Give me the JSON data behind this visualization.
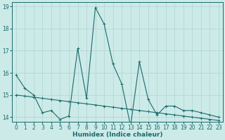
{
  "title": "",
  "xlabel": "Humidex (Indice chaleur)",
  "ylabel": "",
  "background_color": "#cceae8",
  "grid_color": "#aed4d2",
  "line_color": "#1a6b6b",
  "xlim": [
    -0.5,
    23.5
  ],
  "ylim": [
    13.8,
    19.2
  ],
  "yticks": [
    14,
    15,
    16,
    17,
    18,
    19
  ],
  "xticks": [
    0,
    1,
    2,
    3,
    4,
    5,
    6,
    7,
    8,
    9,
    10,
    11,
    12,
    13,
    14,
    15,
    16,
    17,
    18,
    19,
    20,
    21,
    22,
    23
  ],
  "series1_x": [
    0,
    1,
    2,
    3,
    4,
    5,
    6,
    7,
    8,
    9,
    10,
    11,
    12,
    13,
    14,
    15,
    16,
    17,
    18,
    19,
    20,
    21,
    22,
    23
  ],
  "series1_y": [
    15.9,
    15.3,
    15.0,
    14.2,
    14.3,
    13.9,
    14.05,
    17.1,
    14.85,
    18.95,
    18.2,
    16.4,
    15.5,
    13.6,
    16.5,
    14.8,
    14.1,
    14.5,
    14.5,
    14.3,
    14.3,
    14.2,
    14.1,
    14.0
  ],
  "series2_x": [
    0,
    1,
    2,
    3,
    4,
    5,
    6,
    7,
    8,
    9,
    10,
    11,
    12,
    13,
    14,
    15,
    16,
    17,
    18,
    19,
    20,
    21,
    22,
    23
  ],
  "series2_y": [
    15.0,
    14.95,
    14.9,
    14.85,
    14.8,
    14.75,
    14.7,
    14.65,
    14.6,
    14.55,
    14.5,
    14.45,
    14.4,
    14.35,
    14.3,
    14.25,
    14.2,
    14.15,
    14.1,
    14.05,
    14.0,
    13.95,
    13.9,
    13.85
  ],
  "marker_size": 3,
  "line_width": 0.8,
  "tick_fontsize": 5.5,
  "label_fontsize": 6.5
}
